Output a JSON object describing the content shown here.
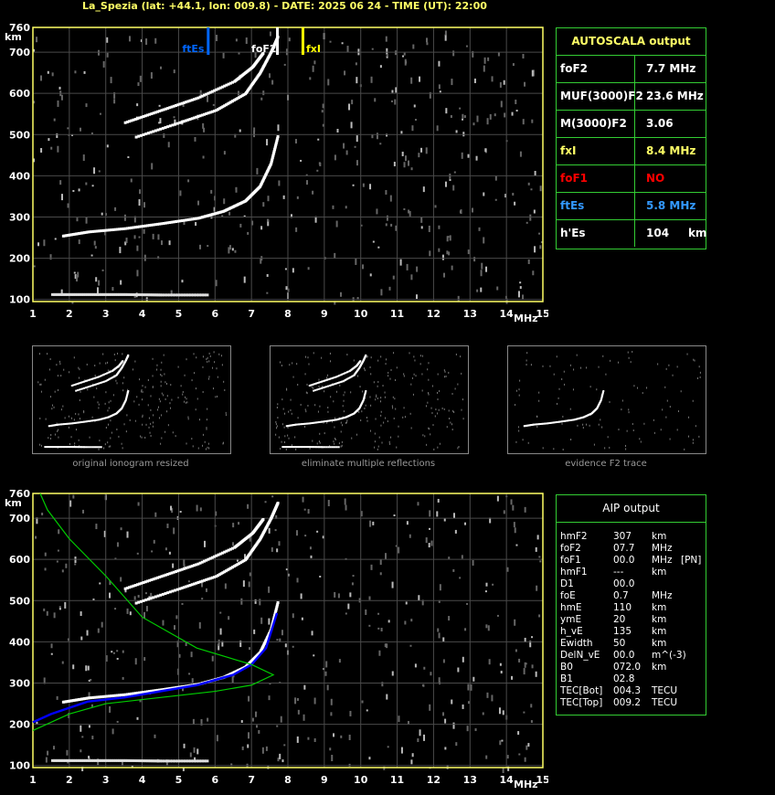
{
  "header": "La_Spezia (lat: +44.1, lon: 009.8) - DATE: 2025 06 24 - TIME (UT): 22:00",
  "colors": {
    "axis": "#ffff66",
    "grid": "#555555",
    "box": "#33cc33",
    "fxI": "#ffff00",
    "ftEs": "#0066ff",
    "foF1": "#ff0000",
    "profile": "#0000ff",
    "model": "#00cc00"
  },
  "chart_data": [
    {
      "type": "scatter",
      "title": "",
      "xlabel": "MHz",
      "ylabel": "km",
      "xlim": [
        1,
        15
      ],
      "ylim": [
        95,
        760
      ],
      "x_ticks": [
        "1",
        "2",
        "3",
        "4",
        "5",
        "6",
        "7",
        "8",
        "9",
        "10",
        "11",
        "12",
        "13",
        "14",
        "15"
      ],
      "y_ticks": [
        "100",
        "200",
        "300",
        "400",
        "500",
        "600",
        "700",
        "760"
      ],
      "markers": [
        {
          "label": "ftEs",
          "x": 5.8,
          "color": "#0066ff"
        },
        {
          "label": "foF2",
          "x": 7.7,
          "color": "#ffffff"
        },
        {
          "label": "fxI",
          "x": 8.4,
          "color": "#ffff00"
        }
      ],
      "traces": {
        "o_F2": {
          "x": [
            1.8,
            2.5,
            3.5,
            4.5,
            5.5,
            6.2,
            6.8,
            7.2,
            7.5,
            7.7
          ],
          "y": [
            255,
            265,
            273,
            285,
            298,
            315,
            340,
            375,
            430,
            500
          ]
        },
        "x_F2": {
          "x": [
            3.8,
            5.0,
            6.0,
            6.8,
            7.2,
            7.5,
            7.7
          ],
          "y": [
            495,
            530,
            560,
            600,
            650,
            700,
            740
          ]
        },
        "x_F2b": {
          "x": [
            3.5,
            4.5,
            5.5,
            6.5,
            7.0,
            7.3
          ],
          "y": [
            530,
            560,
            590,
            630,
            665,
            700
          ]
        },
        "Es": {
          "x": [
            1.5,
            2.5,
            3.5,
            4.5,
            5.8
          ],
          "y": [
            113,
            113,
            113,
            112,
            112
          ]
        }
      }
    },
    {
      "type": "line",
      "title": "",
      "xlabel": "MHz",
      "ylabel": "km",
      "xlim": [
        1,
        15
      ],
      "ylim": [
        95,
        760
      ],
      "x_ticks": [
        "1",
        "2",
        "3",
        "4",
        "5",
        "6",
        "7",
        "8",
        "9",
        "10",
        "11",
        "12",
        "13",
        "14",
        "15"
      ],
      "y_ticks": [
        "100",
        "200",
        "300",
        "400",
        "500",
        "600",
        "700",
        "760"
      ],
      "series": [
        {
          "name": "",
          "color": "#0000ff",
          "x": [
            1.0,
            1.5,
            2.5,
            3.5,
            4.5,
            5.5,
            6.5,
            7.0,
            7.4,
            7.7
          ],
          "y": [
            205,
            225,
            255,
            265,
            280,
            295,
            320,
            345,
            385,
            470
          ]
        },
        {
          "name": "",
          "color": "#00cc00",
          "x": [
            1.0,
            2.0,
            3.0,
            4.5,
            6.0,
            7.0,
            7.6,
            7.0,
            5.5,
            4.0,
            3.0,
            2.0,
            1.4,
            1.2
          ],
          "y": [
            185,
            225,
            250,
            265,
            280,
            295,
            320,
            345,
            385,
            460,
            560,
            650,
            720,
            760
          ]
        }
      ]
    }
  ],
  "autoscala": {
    "title": "AUTOSCALA output",
    "rows": [
      {
        "key": "foF2",
        "value": "7.7 MHz",
        "color": "#ffffff"
      },
      {
        "key": "MUF(3000)F2",
        "value": "23.6 MHz",
        "color": "#ffffff"
      },
      {
        "key": "M(3000)F2",
        "value": "3.06",
        "color": "#ffffff"
      },
      {
        "key": "fxI",
        "value": "8.4 MHz",
        "color": "#ffff66"
      },
      {
        "key": "foF1",
        "value": "NO",
        "color": "#ff0000"
      },
      {
        "key": "ftEs",
        "value": "5.8 MHz",
        "color": "#3399ff"
      },
      {
        "key": "h'Es",
        "value": "104     km",
        "color": "#ffffff"
      }
    ]
  },
  "thumbs": [
    {
      "caption": "original ionogram resized"
    },
    {
      "caption": "eliminate multiple reflections"
    },
    {
      "caption": "evidence F2 trace"
    }
  ],
  "aip": {
    "title": "AIP output",
    "rows": [
      [
        "hmF2",
        "307",
        "km",
        ""
      ],
      [
        "foF2",
        "07.7",
        "MHz",
        ""
      ],
      [
        "foF1",
        "00.0",
        "MHz",
        "[PN]"
      ],
      [
        "hmF1",
        "---",
        "km",
        ""
      ],
      [
        "D1",
        "00.0",
        "",
        ""
      ],
      [
        "foE",
        "0.7",
        "MHz",
        ""
      ],
      [
        "hmE",
        "110",
        "km",
        ""
      ],
      [
        "ymE",
        "20",
        "km",
        ""
      ],
      [
        "h_vE",
        "135",
        "km",
        ""
      ],
      [
        "Ewidth",
        "50",
        "km",
        ""
      ],
      [
        "DelN_vE",
        "00.0",
        "m^(-3)",
        ""
      ],
      [
        "B0",
        "072.0",
        "km",
        ""
      ],
      [
        "B1",
        "02.8",
        "",
        ""
      ],
      [
        "TEC[Bot]",
        "004.3",
        "TECU",
        ""
      ],
      [
        "TEC[Top]",
        "009.2",
        "TECU",
        ""
      ]
    ]
  }
}
